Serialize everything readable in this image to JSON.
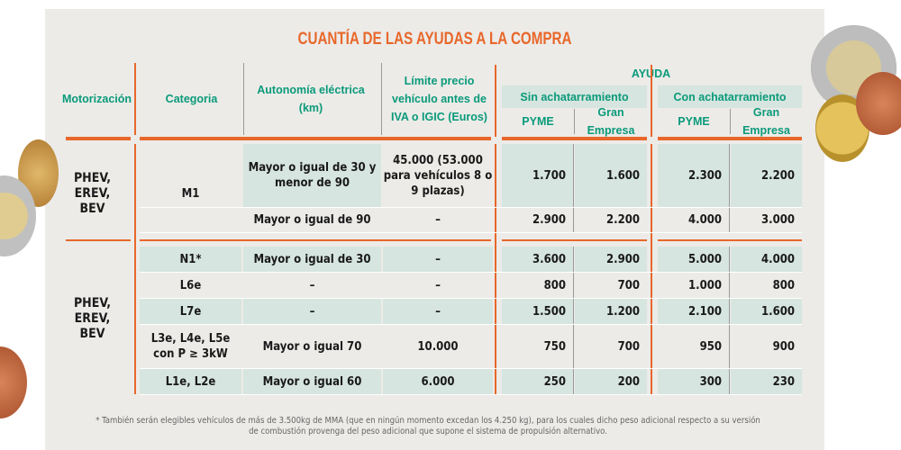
{
  "title": "CUANTÍA DE LAS AYUDAS A LA COMPRA",
  "headers": {
    "motorizacion": "Motorización",
    "categoria": "Categoria",
    "autonomia": "Autonomía eléctrica (km)",
    "limite": "Límite precio vehículo antes de IVA o IGIC (Euros)",
    "ayuda": "AYUDA",
    "sin": "Sin achatarramiento",
    "con": "Con achatarramiento",
    "pyme": "PYME",
    "gran": "Gran Empresa"
  },
  "groups": [
    {
      "motorizacion": "PHEV,\nEREV,\nBEV",
      "categoria_span": "M1",
      "rows": [
        {
          "autonomia": "Mayor o igual de 30 y menor de 90",
          "limite": "45.000 (53.000 para vehículos 8 o 9 plazas)",
          "values": [
            "1.700",
            "1.600",
            "2.300",
            "2.200"
          ]
        },
        {
          "autonomia": "Mayor o igual de 90",
          "limite": "–",
          "values": [
            "2.900",
            "2.200",
            "4.000",
            "3.000"
          ]
        }
      ]
    },
    {
      "motorizacion": "PHEV,\nEREV,\nBEV",
      "rows": [
        {
          "categoria": "N1*",
          "autonomia": "Mayor o igual de 30",
          "limite": "–",
          "values": [
            "3.600",
            "2.900",
            "5.000",
            "4.000"
          ]
        },
        {
          "categoria": "L6e",
          "autonomia": "–",
          "limite": "–",
          "values": [
            "800",
            "700",
            "1.000",
            "800"
          ]
        },
        {
          "categoria": "L7e",
          "autonomia": "–",
          "limite": "–",
          "values": [
            "1.500",
            "1.200",
            "2.100",
            "1.600"
          ]
        },
        {
          "categoria": "L3e, L4e, L5e con P ≥ 3kW",
          "autonomia": "Mayor o igual 70",
          "limite": "10.000",
          "values": [
            "750",
            "700",
            "950",
            "900"
          ]
        },
        {
          "categoria": "L1e, L2e",
          "autonomia": "Mayor o igual 60",
          "limite": "6.000",
          "values": [
            "250",
            "200",
            "300",
            "230"
          ]
        }
      ]
    }
  ],
  "footnote": "* También serán elegibles vehículos de más de 3.500kg de MMA (que en ningún momento excedan los 4.250 kg), para los cuales dicho peso adicional respecto a su versión de combustión provenga del peso adicional que supone el sistema de propulsión alternativo.",
  "colors": {
    "title": "#e8672a",
    "header": "#0a9a7a",
    "shade": "#d6e5df"
  }
}
